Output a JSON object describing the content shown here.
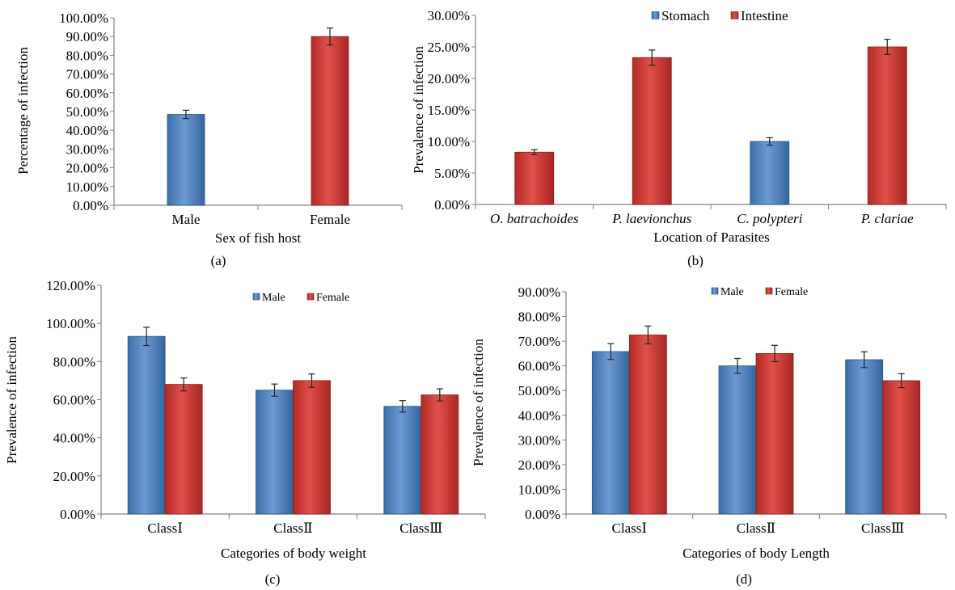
{
  "colors": {
    "male_blue": "#4f81bd",
    "female_red": "#c0504d",
    "axis": "#808080"
  },
  "chart_data": [
    {
      "type": "bar",
      "caption": "(a)",
      "xlabel": "Sex of fish host",
      "ylabel": "Percentage of infection",
      "ylim": [
        0,
        100
      ],
      "yticks": [
        "0.00%",
        "10.00%",
        "20.00%",
        "30.00%",
        "40.00%",
        "50.00%",
        "60.00%",
        "70.00%",
        "80.00%",
        "90.00%",
        "100.00%"
      ],
      "categories": [
        "Male",
        "Female"
      ],
      "series": [
        {
          "values": [
            48.5,
            90.0
          ],
          "errors": [
            2.2,
            4.5
          ],
          "colors": [
            "blue",
            "red"
          ]
        }
      ],
      "legend": []
    },
    {
      "type": "bar",
      "caption": "(b)",
      "xlabel": "Location of Parasites",
      "ylabel": "Prevalence of infection",
      "ylim": [
        0,
        30
      ],
      "yticks": [
        "0.00%",
        "5.00%",
        "10.00%",
        "15.00%",
        "20.00%",
        "25.00%",
        "30.00%"
      ],
      "categories": [
        "O. batrachoides",
        "P. laevionchus",
        "C. polypteri",
        "P. clariae"
      ],
      "series": [
        {
          "values": [
            8.3,
            23.3,
            10.0,
            25.0
          ],
          "errors": [
            0.4,
            1.2,
            0.6,
            1.2
          ],
          "colors": [
            "red",
            "red",
            "blue",
            "red"
          ]
        }
      ],
      "legend": [
        {
          "label": "Stomach",
          "color": "blue"
        },
        {
          "label": "Intestine",
          "color": "red"
        }
      ]
    },
    {
      "type": "bar",
      "caption": "(c)",
      "xlabel": "Categories of body weight",
      "ylabel": "Prevalence of infection",
      "ylim": [
        0,
        120
      ],
      "yticks": [
        "0.00%",
        "20.00%",
        "40.00%",
        "60.00%",
        "80.00%",
        "100.00%",
        "120.00%"
      ],
      "categories": [
        "ClassⅠ",
        "ClassⅡ",
        "ClassⅢ"
      ],
      "series": [
        {
          "name": "Male",
          "values": [
            93.2,
            65.0,
            56.5
          ],
          "errors": [
            4.8,
            3.2,
            3.0
          ],
          "color": "blue"
        },
        {
          "name": "Female",
          "values": [
            68.0,
            70.0,
            62.5
          ],
          "errors": [
            3.4,
            3.5,
            3.2
          ],
          "color": "red"
        }
      ],
      "legend": [
        {
          "label": "Male",
          "color": "blue"
        },
        {
          "label": "Female",
          "color": "red"
        }
      ]
    },
    {
      "type": "bar",
      "caption": "(d)",
      "xlabel": "Categories of body Length",
      "ylabel": "Prevalence of infection",
      "ylim": [
        0,
        90
      ],
      "yticks": [
        "0.00%",
        "10.00%",
        "20.00%",
        "30.00%",
        "40.00%",
        "50.00%",
        "60.00%",
        "70.00%",
        "80.00%",
        "90.00%"
      ],
      "categories": [
        "ClassⅠ",
        "ClassⅡ",
        "ClassⅢ"
      ],
      "series": [
        {
          "name": "Male",
          "values": [
            65.8,
            60.0,
            62.5
          ],
          "errors": [
            3.2,
            3.0,
            3.2
          ],
          "color": "blue"
        },
        {
          "name": "Female",
          "values": [
            72.5,
            65.0,
            54.0
          ],
          "errors": [
            3.6,
            3.3,
            2.8
          ],
          "color": "red"
        }
      ],
      "legend": [
        {
          "label": "Male",
          "color": "blue"
        },
        {
          "label": "Female",
          "color": "red"
        }
      ]
    }
  ]
}
